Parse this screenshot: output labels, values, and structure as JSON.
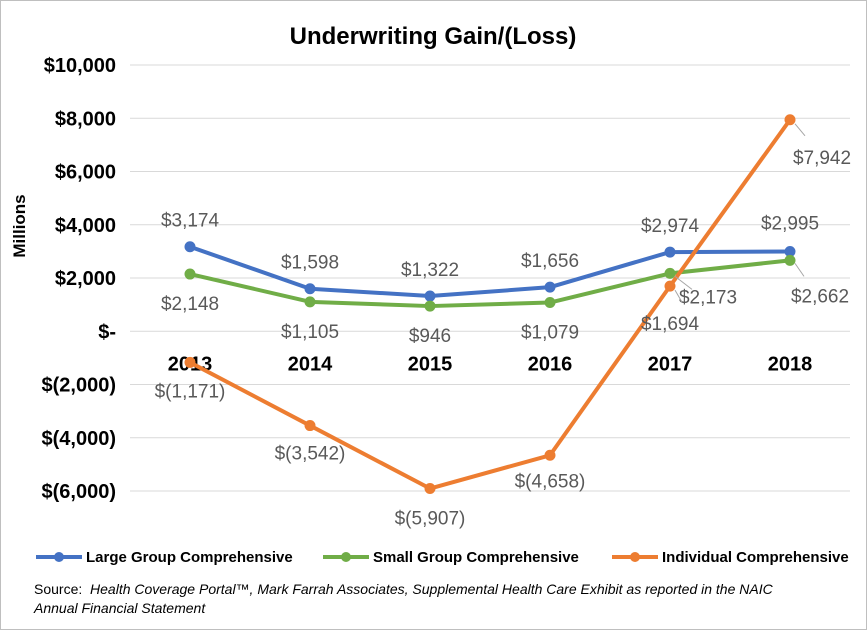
{
  "chart_data": {
    "type": "line",
    "title": "Underwriting Gain/(Loss)",
    "ylabel": "Millions",
    "xlabel": "",
    "categories": [
      "2013",
      "2014",
      "2015",
      "2016",
      "2017",
      "2018"
    ],
    "ylim": [
      -6000,
      10000
    ],
    "yticks": [
      10000,
      8000,
      6000,
      4000,
      2000,
      0,
      -2000,
      -4000,
      -6000
    ],
    "ytick_labels": [
      "$10,000",
      "$8,000",
      "$6,000",
      "$4,000",
      "$2,000",
      "$-",
      "$(2,000)",
      "$(4,000)",
      "$(6,000)"
    ],
    "grid": true,
    "legend_position": "bottom",
    "series": [
      {
        "name": "Large Group Comprehensive",
        "color": "#4472c4",
        "values": [
          3174,
          1598,
          1322,
          1656,
          2974,
          2995
        ],
        "labels": [
          "$3,174",
          "$1,598",
          "$1,322",
          "$1,656",
          "$2,974",
          "$2,995"
        ]
      },
      {
        "name": "Small Group Comprehensive",
        "color": "#70ad47",
        "values": [
          2148,
          1105,
          946,
          1079,
          2173,
          2662
        ],
        "labels": [
          "$2,148",
          "$1,105",
          "$946",
          "$1,079",
          "$2,173",
          "$2,662"
        ]
      },
      {
        "name": "Individual Comprehensive",
        "color": "#ed7d31",
        "values": [
          -1171,
          -3542,
          -5907,
          -4658,
          1694,
          7942
        ],
        "labels": [
          "$(1,171)",
          "$(3,542)",
          "$(5,907)",
          "$(4,658)",
          "$1,694",
          "$7,942"
        ]
      }
    ]
  },
  "source": {
    "prefix": "Source:",
    "text_line1": "Health Coverage Portal™, Mark Farrah Associates, Supplemental Health Care Exhibit as reported in the NAIC",
    "text_line2": "Annual Financial Statement"
  }
}
